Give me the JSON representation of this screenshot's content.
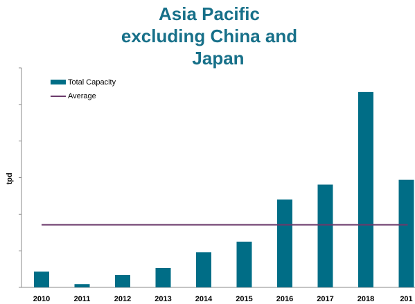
{
  "chart_data": {
    "type": "bar",
    "title": [
      "Asia Pacific",
      "excluding China and",
      "Japan"
    ],
    "y_label": "tpd",
    "categories": [
      "2010",
      "2011",
      "2012",
      "2013",
      "2014",
      "2015",
      "2016",
      "2017",
      "2018",
      "201"
    ],
    "series": [
      {
        "name": "Total Capacity",
        "color": "#006d86",
        "values": [
          0.43,
          0.09,
          0.34,
          0.53,
          0.96,
          1.25,
          2.4,
          2.81,
          5.34,
          2.94
        ]
      },
      {
        "name": "Average",
        "color": "#6b3a6b",
        "type": "line",
        "value": 1.71
      }
    ],
    "ylim": [
      0,
      6
    ],
    "yticks": [
      0,
      1,
      2,
      3,
      4,
      5,
      6
    ],
    "grid": false,
    "legend": "top-left"
  }
}
